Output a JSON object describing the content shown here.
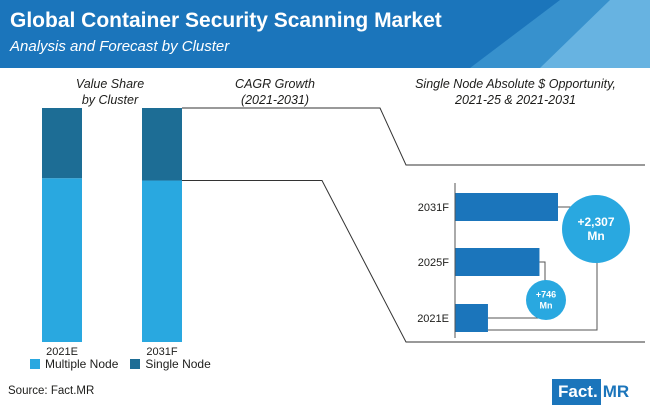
{
  "header": {
    "title": "Global Container Security Scanning Market",
    "subtitle": "Analysis and Forecast by Cluster",
    "color": "#1b75bb"
  },
  "sections": {
    "value_share": "Value Share\nby Cluster",
    "cagr": "CAGR Growth\n(2021-2031)",
    "opportunity": "Single Node Absolute $ Opportunity,\n2021-25 & 2021-2031"
  },
  "chart_data": [
    {
      "type": "bar",
      "stacked": true,
      "title": "Value Share by Cluster",
      "categories": [
        "2021E",
        "2031F"
      ],
      "series": [
        {
          "name": "Multiple Node",
          "values": [
            70,
            69
          ],
          "color": "#29a8e0"
        },
        {
          "name": "Single Node",
          "values": [
            30,
            31
          ],
          "color": "#1d6d95"
        }
      ],
      "ylim": [
        0,
        100
      ],
      "legend": "bottom"
    },
    {
      "type": "bar",
      "orientation": "horizontal",
      "title": "Single Node Absolute $ Opportunity, 2021-25 & 2021-2031",
      "categories": [
        "2031F",
        "2025F",
        "2021E"
      ],
      "values": [
        100,
        82,
        32
      ],
      "color": "#1b75bb",
      "annotations": [
        {
          "text": "+2,307\nMn",
          "from": "2021E",
          "to": "2031F"
        },
        {
          "text": "+746\nMn",
          "from": "2021E",
          "to": "2025F"
        }
      ]
    }
  ],
  "legend_items": [
    "Multiple Node",
    "Single Node"
  ],
  "footer": {
    "source": "Source: Fact.MR",
    "logo_left": "Fact.",
    "logo_right": "MR"
  }
}
